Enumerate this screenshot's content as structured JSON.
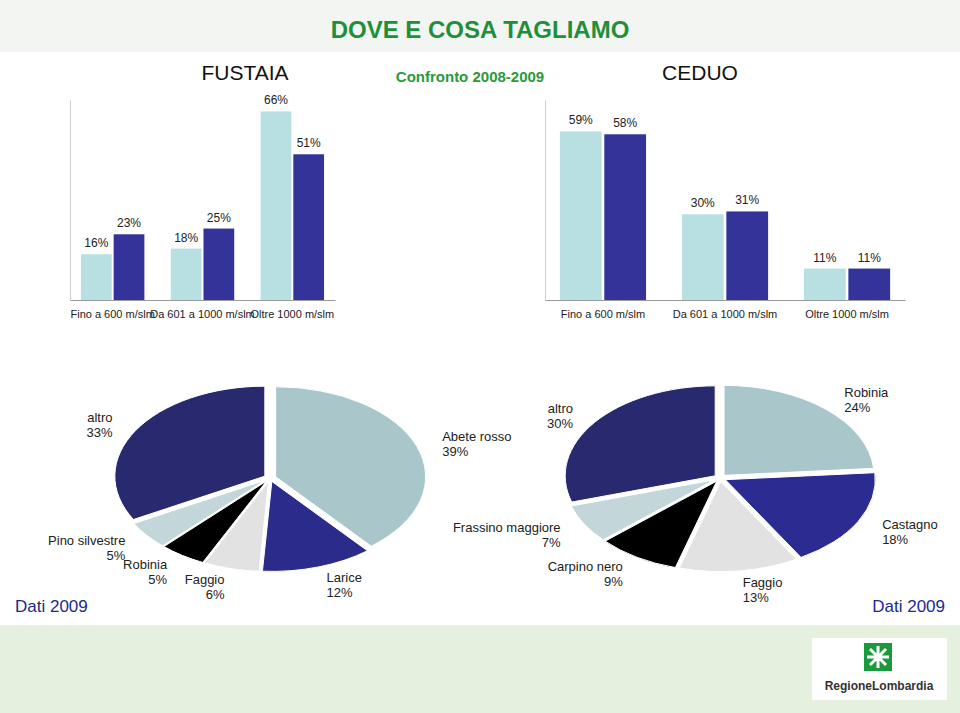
{
  "title": "DOVE E COSA TAGLIAMO",
  "subtitle": "Confronto 2008-2009",
  "logo": "RegioneLombardia",
  "chart_data": [
    {
      "type": "bar",
      "title": "FUSTAIA",
      "categories": [
        "Fino a 600 m/slm",
        "Da 601 a 1000 m/slm",
        "Oltre 1000 m/slm"
      ],
      "series": [
        {
          "color": "#b8dfe2",
          "values": [
            16,
            18,
            66
          ],
          "value_labels": [
            "16%",
            "18%",
            "66%"
          ]
        },
        {
          "color": "#33339a",
          "values": [
            23,
            25,
            51
          ],
          "value_labels": [
            "23%",
            "25%",
            "51%"
          ]
        }
      ],
      "ylim": [
        0,
        70
      ],
      "tick_labels": "x",
      "data_labels": true
    },
    {
      "type": "bar",
      "title": "CEDUO",
      "categories": [
        "Fino a 600 m/slm",
        "Da 601 a 1000 m/slm",
        "Oltre 1000 m/slm"
      ],
      "series": [
        {
          "color": "#b8dfe2",
          "values": [
            59,
            30,
            11
          ],
          "value_labels": [
            "59%",
            "30%",
            "11%"
          ]
        },
        {
          "color": "#33339a",
          "values": [
            58,
            31,
            11
          ],
          "value_labels": [
            "58%",
            "31%",
            "11%"
          ]
        }
      ],
      "ylim": [
        0,
        70
      ],
      "tick_labels": "x",
      "data_labels": true
    },
    {
      "type": "pie",
      "subtitle": "Dati 2009",
      "categories": [
        "Abete rosso",
        "Larice",
        "Faggio",
        "Robinia",
        "Pino silvestre",
        "altro"
      ],
      "values": [
        39,
        12,
        6,
        5,
        5,
        33
      ],
      "value_labels": [
        "39%",
        "12%",
        "6%",
        "5%",
        "5%",
        "33%"
      ],
      "colors": [
        "#a9c6ca",
        "#2b2b8c",
        "#e2e2e2",
        "#000000",
        "#c3d7da",
        "#29296f"
      ],
      "data_labels": true
    },
    {
      "type": "pie",
      "subtitle": "Dati 2009",
      "categories": [
        "Robinia",
        "Castagno",
        "Faggio",
        "Carpino nero",
        "Frassino maggiore",
        "altro"
      ],
      "values": [
        24,
        18,
        13,
        9,
        7,
        30
      ],
      "value_labels": [
        "24%",
        "18%",
        "13%",
        "9%",
        "7%",
        "30%"
      ],
      "colors": [
        "#a9c6ca",
        "#2b2b92",
        "#e2e2e2",
        "#000000",
        "#c3d7da",
        "#29296f"
      ],
      "data_labels": true
    }
  ]
}
